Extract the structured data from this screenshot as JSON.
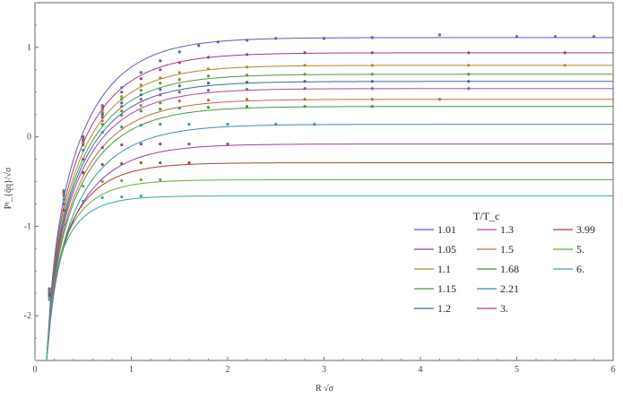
{
  "chart_data": {
    "type": "line",
    "xlabel": "R √σ",
    "ylabel": "P¹_{q̄q}/√σ",
    "xlim": [
      0,
      6
    ],
    "ylim": [
      -2.5,
      1.5
    ],
    "xticks": [
      "0",
      "1",
      "2",
      "3",
      "4",
      "5",
      "6"
    ],
    "yticks": [
      "-2",
      "-1",
      "0",
      "1"
    ],
    "grid": false,
    "legend": {
      "title": "T/T_c",
      "placement": "bottom-right",
      "entries": [
        "1.01",
        "1.05",
        "1.1",
        "1.15",
        "1.2",
        "1.3",
        "1.5",
        "1.68",
        "2.21",
        "3.",
        "3.99",
        "5.",
        "6."
      ]
    },
    "series": [
      {
        "name": "1.01",
        "color": "#5b5fb0",
        "asymptote": 1.11,
        "points": [
          [
            0.15,
            -1.7
          ],
          [
            0.3,
            -0.6
          ],
          [
            0.5,
            0.0
          ],
          [
            0.7,
            0.35
          ],
          [
            0.9,
            0.55
          ],
          [
            1.1,
            0.72
          ],
          [
            1.3,
            0.85
          ],
          [
            1.5,
            0.95
          ],
          [
            1.7,
            1.02
          ],
          [
            1.9,
            1.06
          ],
          [
            2.2,
            1.08
          ],
          [
            2.5,
            1.1
          ],
          [
            3.0,
            1.1
          ],
          [
            3.5,
            1.11
          ],
          [
            4.2,
            1.14
          ],
          [
            5.0,
            1.12
          ],
          [
            5.4,
            1.12
          ],
          [
            5.8,
            1.12
          ]
        ]
      },
      {
        "name": "1.05",
        "color": "#9b3d8a",
        "asymptote": 0.94,
        "points": [
          [
            0.15,
            -1.7
          ],
          [
            0.3,
            -0.6
          ],
          [
            0.5,
            0.0
          ],
          [
            0.7,
            0.32
          ],
          [
            0.9,
            0.5
          ],
          [
            1.1,
            0.65
          ],
          [
            1.3,
            0.75
          ],
          [
            1.5,
            0.83
          ],
          [
            1.8,
            0.89
          ],
          [
            2.2,
            0.92
          ],
          [
            2.8,
            0.94
          ],
          [
            3.5,
            0.94
          ],
          [
            4.5,
            0.94
          ],
          [
            5.5,
            0.94
          ]
        ]
      },
      {
        "name": "1.1",
        "color": "#b08a2a",
        "asymptote": 0.8,
        "points": [
          [
            0.15,
            -1.7
          ],
          [
            0.3,
            -0.6
          ],
          [
            0.5,
            -0.02
          ],
          [
            0.7,
            0.3
          ],
          [
            0.9,
            0.45
          ],
          [
            1.1,
            0.58
          ],
          [
            1.3,
            0.66
          ],
          [
            1.5,
            0.72
          ],
          [
            1.8,
            0.76
          ],
          [
            2.2,
            0.78
          ],
          [
            2.8,
            0.8
          ],
          [
            3.5,
            0.8
          ],
          [
            4.5,
            0.8
          ],
          [
            5.5,
            0.8
          ]
        ]
      },
      {
        "name": "1.15",
        "color": "#4a9a4a",
        "asymptote": 0.7,
        "points": [
          [
            0.15,
            -1.7
          ],
          [
            0.3,
            -0.62
          ],
          [
            0.5,
            -0.03
          ],
          [
            0.7,
            0.27
          ],
          [
            0.9,
            0.42
          ],
          [
            1.1,
            0.52
          ],
          [
            1.3,
            0.6
          ],
          [
            1.5,
            0.64
          ],
          [
            1.8,
            0.68
          ],
          [
            2.2,
            0.69
          ],
          [
            2.8,
            0.7
          ],
          [
            3.5,
            0.7
          ],
          [
            4.5,
            0.7
          ]
        ]
      },
      {
        "name": "1.2",
        "color": "#3f66a0",
        "asymptote": 0.62,
        "points": [
          [
            0.15,
            -1.7
          ],
          [
            0.3,
            -0.62
          ],
          [
            0.5,
            -0.04
          ],
          [
            0.7,
            0.25
          ],
          [
            0.9,
            0.38
          ],
          [
            1.1,
            0.47
          ],
          [
            1.3,
            0.53
          ],
          [
            1.5,
            0.57
          ],
          [
            1.8,
            0.6
          ],
          [
            2.2,
            0.61
          ],
          [
            2.8,
            0.62
          ],
          [
            3.5,
            0.62
          ],
          [
            4.5,
            0.62
          ]
        ]
      },
      {
        "name": "1.3",
        "color": "#a04aa8",
        "asymptote": 0.54,
        "points": [
          [
            0.15,
            -1.7
          ],
          [
            0.3,
            -0.63
          ],
          [
            0.5,
            -0.05
          ],
          [
            0.7,
            0.22
          ],
          [
            0.9,
            0.34
          ],
          [
            1.1,
            0.42
          ],
          [
            1.3,
            0.47
          ],
          [
            1.5,
            0.5
          ],
          [
            1.8,
            0.52
          ],
          [
            2.2,
            0.53
          ],
          [
            2.8,
            0.54
          ],
          [
            3.5,
            0.54
          ],
          [
            4.5,
            0.54
          ]
        ]
      },
      {
        "name": "1.5",
        "color": "#c06a3a",
        "asymptote": 0.42,
        "points": [
          [
            0.15,
            -1.72
          ],
          [
            0.3,
            -0.65
          ],
          [
            0.5,
            -0.07
          ],
          [
            0.7,
            0.18
          ],
          [
            0.9,
            0.29
          ],
          [
            1.1,
            0.35
          ],
          [
            1.3,
            0.38
          ],
          [
            1.5,
            0.4
          ],
          [
            1.8,
            0.41
          ],
          [
            2.2,
            0.42
          ],
          [
            2.8,
            0.42
          ],
          [
            3.5,
            0.42
          ],
          [
            4.2,
            0.42
          ]
        ]
      },
      {
        "name": "1.68",
        "color": "#3c9a3c",
        "asymptote": 0.34,
        "points": [
          [
            0.15,
            -1.72
          ],
          [
            0.3,
            -0.66
          ],
          [
            0.5,
            -0.09
          ],
          [
            0.7,
            0.14
          ],
          [
            0.9,
            0.24
          ],
          [
            1.1,
            0.29
          ],
          [
            1.3,
            0.31
          ],
          [
            1.5,
            0.32
          ],
          [
            1.8,
            0.33
          ],
          [
            2.2,
            0.34
          ],
          [
            2.8,
            0.34
          ],
          [
            3.5,
            0.34
          ]
        ]
      },
      {
        "name": "2.21",
        "color": "#3b8fb0",
        "asymptote": 0.14,
        "points": [
          [
            0.15,
            -1.74
          ],
          [
            0.3,
            -0.7
          ],
          [
            0.5,
            -0.15
          ],
          [
            0.7,
            0.05
          ],
          [
            0.9,
            0.11
          ],
          [
            1.1,
            0.13
          ],
          [
            1.3,
            0.14
          ],
          [
            1.6,
            0.14
          ],
          [
            2.0,
            0.14
          ],
          [
            2.5,
            0.14
          ],
          [
            2.9,
            0.14
          ]
        ]
      },
      {
        "name": "3.",
        "color": "#9a3f9a",
        "asymptote": -0.08,
        "points": [
          [
            0.15,
            -1.76
          ],
          [
            0.3,
            -0.75
          ],
          [
            0.5,
            -0.25
          ],
          [
            0.7,
            -0.12
          ],
          [
            0.9,
            -0.09
          ],
          [
            1.1,
            -0.08
          ],
          [
            1.3,
            -0.08
          ],
          [
            1.6,
            -0.08
          ],
          [
            2.0,
            -0.08
          ]
        ]
      },
      {
        "name": "3.99",
        "color": "#a0403a",
        "asymptote": -0.29,
        "points": [
          [
            0.15,
            -1.78
          ],
          [
            0.3,
            -0.82
          ],
          [
            0.5,
            -0.4
          ],
          [
            0.7,
            -0.31
          ],
          [
            0.9,
            -0.3
          ],
          [
            1.1,
            -0.29
          ],
          [
            1.3,
            -0.29
          ],
          [
            1.6,
            -0.29
          ]
        ]
      },
      {
        "name": "5.",
        "color": "#6aaa3a",
        "asymptote": -0.48,
        "points": [
          [
            0.15,
            -1.8
          ],
          [
            0.3,
            -0.9
          ],
          [
            0.5,
            -0.55
          ],
          [
            0.7,
            -0.5
          ],
          [
            0.9,
            -0.49
          ],
          [
            1.1,
            -0.48
          ],
          [
            1.3,
            -0.48
          ]
        ]
      },
      {
        "name": "6.",
        "color": "#3aa8a8",
        "asymptote": -0.66,
        "points": [
          [
            0.15,
            -1.82
          ],
          [
            0.3,
            -0.98
          ],
          [
            0.5,
            -0.72
          ],
          [
            0.7,
            -0.68
          ],
          [
            0.9,
            -0.67
          ],
          [
            1.1,
            -0.66
          ]
        ]
      }
    ]
  }
}
